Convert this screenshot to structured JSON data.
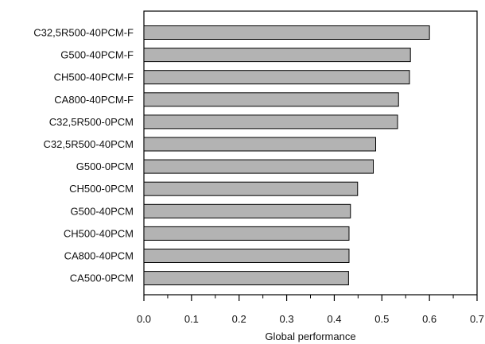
{
  "chart_data": {
    "type": "bar",
    "orientation": "horizontal",
    "categories": [
      "C32,5R500-40PCM-F",
      "G500-40PCM-F",
      "CH500-40PCM-F",
      "CA800-40PCM-F",
      "C32,5R500-0PCM",
      "C32,5R500-40PCM",
      "G500-0PCM",
      "CH500-0PCM",
      "G500-40PCM",
      "CH500-40PCM",
      "CA800-40PCM",
      "CA500-0PCM"
    ],
    "values": [
      0.6,
      0.56,
      0.558,
      0.535,
      0.533,
      0.487,
      0.482,
      0.449,
      0.434,
      0.431,
      0.431,
      0.43
    ],
    "xlabel": "Global performance",
    "ylabel": "",
    "xlim": [
      0.0,
      0.7
    ],
    "xticks": [
      "0.0",
      "0.1",
      "0.2",
      "0.3",
      "0.4",
      "0.5",
      "0.6",
      "0.7"
    ],
    "grid": false,
    "bar_color": "#b3b3b3",
    "bar_edge_color": "#000000"
  }
}
